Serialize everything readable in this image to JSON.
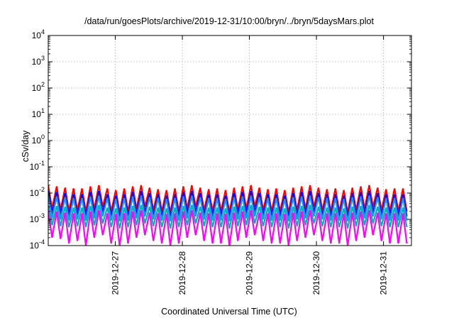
{
  "chart_data": {
    "type": "line",
    "title": "/data/run/goesPlots/archive/2019-12-31/10:00/bryn/../bryn/5daysMars.plot",
    "xlabel": "Coordinated Universal Time (UTC)",
    "ylabel": "cSv/day",
    "yscale": "log",
    "ylim": [
      0.0001,
      10000
    ],
    "xlim": [
      "2019-12-26T00:00",
      "2019-12-31T10:00"
    ],
    "x_ticks": [
      "2019-12-27",
      "2019-12-28",
      "2019-12-29",
      "2019-12-30",
      "2019-12-31"
    ],
    "y_ticks": [
      {
        "base": "10",
        "exp": "-4"
      },
      {
        "base": "10",
        "exp": "-3"
      },
      {
        "base": "10",
        "exp": "-2"
      },
      {
        "base": "10",
        "exp": "-1"
      },
      {
        "base": "10",
        "exp": "0"
      },
      {
        "base": "10",
        "exp": "1"
      },
      {
        "base": "10",
        "exp": "2"
      },
      {
        "base": "10",
        "exp": "3"
      },
      {
        "base": "10",
        "exp": "4"
      }
    ],
    "grid": true,
    "pattern": "sawtooth, rising ~1 decade over ~3 h then dropping",
    "series": [
      {
        "color": "#ff0000",
        "peaks": [
          0.02,
          0.018,
          0.016,
          0.015,
          0.015,
          0.018,
          0.02,
          0.015,
          0.013,
          0.015,
          0.018,
          0.02,
          0.016,
          0.014,
          0.013,
          0.015,
          0.018,
          0.02,
          0.016,
          0.014,
          0.015,
          0.013,
          0.016,
          0.018,
          0.02,
          0.016,
          0.014,
          0.015,
          0.013,
          0.016,
          0.018,
          0.02,
          0.016,
          0.014,
          0.015,
          0.013,
          0.016,
          0.018,
          0.02,
          0.016,
          0.014,
          0.015,
          0.015
        ],
        "troughs": [
          0.0025,
          0.0022,
          0.002,
          0.0022,
          0.002,
          0.0025,
          0.003,
          0.002,
          0.0018,
          0.002,
          0.0025,
          0.003,
          0.0022,
          0.002,
          0.0018,
          0.002,
          0.0025,
          0.003,
          0.0022,
          0.002,
          0.002,
          0.0018,
          0.0022,
          0.0025,
          0.003,
          0.0022,
          0.002,
          0.002,
          0.0018,
          0.0022,
          0.0025,
          0.003,
          0.0022,
          0.002,
          0.002,
          0.0018,
          0.0022,
          0.0025,
          0.003,
          0.0022,
          0.002,
          0.002,
          0.002
        ]
      },
      {
        "color": "#0000ff",
        "peaks": [
          0.012,
          0.011,
          0.01,
          0.009,
          0.009,
          0.011,
          0.012,
          0.009,
          0.008,
          0.009,
          0.011,
          0.012,
          0.01,
          0.009,
          0.008,
          0.009,
          0.011,
          0.012,
          0.01,
          0.009,
          0.009,
          0.008,
          0.01,
          0.011,
          0.012,
          0.01,
          0.009,
          0.009,
          0.008,
          0.01,
          0.011,
          0.012,
          0.01,
          0.009,
          0.009,
          0.008,
          0.01,
          0.011,
          0.012,
          0.01,
          0.009,
          0.009,
          0.009
        ],
        "troughs": [
          0.0016,
          0.0014,
          0.0013,
          0.0014,
          0.0013,
          0.0016,
          0.0019,
          0.0013,
          0.0012,
          0.0013,
          0.0016,
          0.0019,
          0.0014,
          0.0013,
          0.0012,
          0.0013,
          0.0016,
          0.0019,
          0.0014,
          0.0013,
          0.0013,
          0.0012,
          0.0014,
          0.0016,
          0.0019,
          0.0014,
          0.0013,
          0.0013,
          0.0012,
          0.0014,
          0.0016,
          0.0019,
          0.0014,
          0.0013,
          0.0013,
          0.0012,
          0.0014,
          0.0016,
          0.0019,
          0.0014,
          0.0013,
          0.0013,
          0.0013
        ]
      },
      {
        "color": "#1e90ff",
        "peaks": [
          0.008,
          0.0075,
          0.007,
          0.0065,
          0.0065,
          0.0075,
          0.008,
          0.0065,
          0.006,
          0.0065,
          0.0075,
          0.008,
          0.007,
          0.0065,
          0.006,
          0.0065,
          0.0075,
          0.008,
          0.007,
          0.0065,
          0.0065,
          0.006,
          0.007,
          0.0075,
          0.008,
          0.007,
          0.0065,
          0.0065,
          0.006,
          0.007,
          0.0075,
          0.008,
          0.007,
          0.0065,
          0.0065,
          0.006,
          0.007,
          0.0075,
          0.008,
          0.007,
          0.0065,
          0.0065,
          0.0065
        ],
        "troughs": [
          0.0011,
          0.001,
          0.0009,
          0.001,
          0.0009,
          0.0011,
          0.0013,
          0.0009,
          0.00085,
          0.0009,
          0.0011,
          0.0013,
          0.001,
          0.0009,
          0.00085,
          0.0009,
          0.0011,
          0.0013,
          0.001,
          0.0009,
          0.0009,
          0.00085,
          0.001,
          0.0011,
          0.0013,
          0.001,
          0.0009,
          0.0009,
          0.00085,
          0.001,
          0.0011,
          0.0013,
          0.001,
          0.0009,
          0.0009,
          0.00085,
          0.001,
          0.0011,
          0.0013,
          0.001,
          0.0009,
          0.0009,
          0.0009
        ]
      },
      {
        "color": "#00b3b3",
        "peaks": [
          0.0035,
          0.0032,
          0.003,
          0.0028,
          0.0028,
          0.0032,
          0.0035,
          0.0028,
          0.0026,
          0.0028,
          0.0032,
          0.0035,
          0.003,
          0.0028,
          0.0026,
          0.0028,
          0.0032,
          0.0035,
          0.003,
          0.0028,
          0.0028,
          0.0026,
          0.003,
          0.0032,
          0.0035,
          0.003,
          0.0028,
          0.0028,
          0.0026,
          0.003,
          0.0032,
          0.0035,
          0.003,
          0.0028,
          0.0028,
          0.0026,
          0.003,
          0.0032,
          0.0035,
          0.003,
          0.0028,
          0.0028,
          0.0028
        ],
        "troughs": [
          0.0006,
          0.00055,
          0.0005,
          0.00055,
          0.0005,
          0.0006,
          0.0007,
          0.0005,
          0.00045,
          0.0005,
          0.0006,
          0.0007,
          0.00055,
          0.0005,
          0.00045,
          0.0005,
          0.0006,
          0.0007,
          0.00055,
          0.0005,
          0.0005,
          0.00045,
          0.00055,
          0.0006,
          0.0007,
          0.00055,
          0.0005,
          0.0005,
          0.00045,
          0.00055,
          0.0006,
          0.0007,
          0.00055,
          0.0005,
          0.0005,
          0.00045,
          0.00055,
          0.0006,
          0.0007,
          0.00055,
          0.0005,
          0.0005,
          0.0005
        ]
      },
      {
        "color": "#ff00ff",
        "peaks": [
          0.0022,
          0.002,
          0.0018,
          0.0017,
          0.0017,
          0.002,
          0.0022,
          0.0017,
          0.0016,
          0.0017,
          0.002,
          0.0022,
          0.0018,
          0.0017,
          0.0016,
          0.0017,
          0.002,
          0.0022,
          0.0018,
          0.0017,
          0.0017,
          0.0016,
          0.0018,
          0.002,
          0.0022,
          0.0018,
          0.0017,
          0.0017,
          0.0016,
          0.0018,
          0.002,
          0.0022,
          0.0018,
          0.0017,
          0.0017,
          0.0016,
          0.0018,
          0.002,
          0.0022,
          0.0018,
          0.0017,
          0.0017,
          0.0017
        ],
        "troughs": [
          0.0002,
          0.00018,
          0.00012,
          0.00015,
          0.0001,
          0.0002,
          0.00025,
          0.00012,
          0.0001,
          0.00012,
          0.0002,
          0.00025,
          0.00015,
          0.00012,
          0.0001,
          0.00012,
          0.0002,
          0.00025,
          0.00015,
          0.00012,
          0.00012,
          0.0001,
          0.00015,
          0.0002,
          0.00025,
          0.00015,
          0.00012,
          0.00012,
          0.0001,
          0.00015,
          0.0002,
          0.00025,
          0.00015,
          0.00012,
          0.00012,
          0.0001,
          0.00015,
          0.0002,
          0.00025,
          0.00015,
          0.00012,
          0.00012,
          0.00012
        ]
      }
    ]
  }
}
